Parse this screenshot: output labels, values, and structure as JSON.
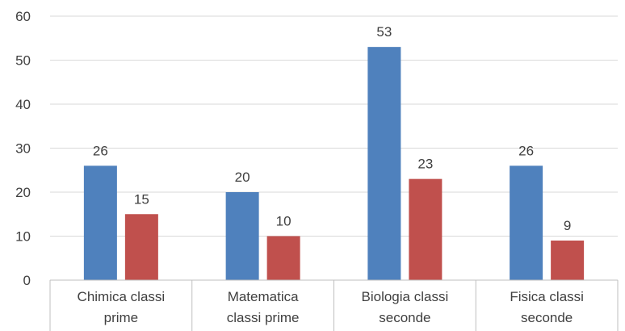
{
  "chart_data": {
    "type": "bar",
    "categories": [
      [
        "Chimica classi",
        "prime"
      ],
      [
        "Matematica",
        "classi prime"
      ],
      [
        "Biologia classi",
        "seconde"
      ],
      [
        "Fisica classi",
        "seconde"
      ]
    ],
    "series": [
      {
        "values": [
          26,
          20,
          53,
          26
        ],
        "color": "#4F81BD"
      },
      {
        "values": [
          15,
          10,
          23,
          9
        ],
        "color": "#C0504D"
      }
    ],
    "ylim": [
      0,
      60
    ],
    "yticks": [
      0,
      10,
      20,
      30,
      40,
      50,
      60
    ],
    "grid": true,
    "data_labels": true,
    "legend": "none"
  }
}
